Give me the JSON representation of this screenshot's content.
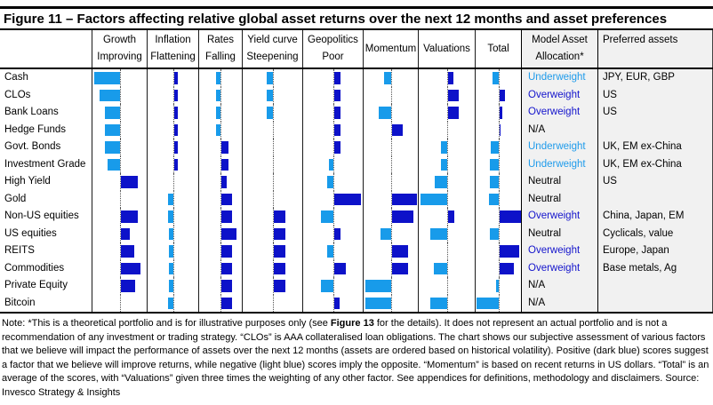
{
  "title": "Figure 11 – Factors affecting relative global asset returns over the next 12 months and asset preferences",
  "chart_data": {
    "type": "bar",
    "orientation": "horizontal-diverging-per-column",
    "scale": {
      "min": -5,
      "max": 5,
      "zero_line": "dotted center line in each factor column"
    },
    "legend": "dark blue = positive score (improves returns), light blue = negative score",
    "factors": [
      {
        "line1": "Growth",
        "line2": "Improving"
      },
      {
        "line1": "Inflation",
        "line2": "Flattening"
      },
      {
        "line1": "Rates",
        "line2": "Falling"
      },
      {
        "line1": "Yield curve",
        "line2": "Steepening"
      },
      {
        "line1": "Geopolitics",
        "line2": "Poor"
      },
      {
        "line1": "Momentum",
        "line2": ""
      },
      {
        "line1": "Valuations",
        "line2": ""
      },
      {
        "line1": "Total",
        "line2": ""
      }
    ],
    "allocation_header": {
      "line1": "Model Asset",
      "line2": "Allocation*"
    },
    "preferred_header": "Preferred assets",
    "rows": [
      {
        "asset": "Cash",
        "scores": [
          -4.7,
          0.8,
          -0.8,
          -1.1,
          1.3,
          -1.3,
          1.1,
          -1.1
        ],
        "allocation": "Underweight",
        "preferred": "JPY, EUR, GBP"
      },
      {
        "asset": "CLOs",
        "scores": [
          -3.8,
          0.8,
          -0.8,
          -1.1,
          1.3,
          0,
          2.1,
          1.1
        ],
        "allocation": "Overweight",
        "preferred": "US"
      },
      {
        "asset": "Bank Loans",
        "scores": [
          -2.8,
          0.8,
          -0.8,
          -1.1,
          1.3,
          -2.2,
          2.1,
          0.6
        ],
        "allocation": "Overweight",
        "preferred": "US"
      },
      {
        "asset": "Hedge Funds",
        "scores": [
          -2.8,
          0.8,
          -0.8,
          0,
          1.3,
          2,
          0,
          0.3
        ],
        "allocation": "N/A",
        "preferred": ""
      },
      {
        "asset": "Govt. Bonds",
        "scores": [
          -2.8,
          0.8,
          1.3,
          0,
          1.3,
          0,
          -1.1,
          -1.4
        ],
        "allocation": "Underweight",
        "preferred": "UK, EM ex-China"
      },
      {
        "asset": "Investment Grade",
        "scores": [
          -2.2,
          0.8,
          1.3,
          0,
          -0.7,
          0,
          -1.1,
          -1.6
        ],
        "allocation": "Underweight",
        "preferred": "UK, EM ex-China"
      },
      {
        "asset": "High Yield",
        "scores": [
          3.2,
          0,
          1,
          0,
          -1.1,
          0,
          -2.3,
          -1.6
        ],
        "allocation": "Neutral",
        "preferred": "US"
      },
      {
        "asset": "Gold",
        "scores": [
          0,
          -1,
          2,
          0,
          5,
          4.7,
          -5,
          -1.7
        ],
        "allocation": "Neutral",
        "preferred": ""
      },
      {
        "asset": "Non-US equities",
        "scores": [
          3.2,
          -1,
          2,
          2.3,
          -2.2,
          4,
          1.3,
          4.7
        ],
        "allocation": "Overweight",
        "preferred": "China, Japan, EM"
      },
      {
        "asset": "US equities",
        "scores": [
          1.8,
          -0.8,
          2.8,
          2.3,
          1.3,
          -2,
          -3.1,
          -1.6
        ],
        "allocation": "Neutral",
        "preferred": "Cyclicals, value"
      },
      {
        "asset": "REITS",
        "scores": [
          2.5,
          -0.8,
          2,
          2.3,
          -1.1,
          3,
          0,
          3.8
        ],
        "allocation": "Overweight",
        "preferred": "Europe, Japan"
      },
      {
        "asset": "Commodities",
        "scores": [
          3.8,
          -0.8,
          2,
          2.3,
          2.2,
          3,
          -2.5,
          2.7
        ],
        "allocation": "Overweight",
        "preferred": "Base metals, Ag"
      },
      {
        "asset": "Private Equity",
        "scores": [
          2.8,
          -0.8,
          2,
          2.3,
          -2.2,
          -4.8,
          0,
          -0.5
        ],
        "allocation": "N/A",
        "preferred": ""
      },
      {
        "asset": "Bitcoin",
        "scores": [
          0,
          -1,
          2,
          0,
          1.1,
          -4.8,
          -3.1,
          -5
        ],
        "allocation": "N/A",
        "preferred": ""
      }
    ]
  },
  "colors": {
    "positive_bar": "#0d12c9",
    "negative_bar": "#189bea",
    "overweight_text": "#1414cc",
    "underweight_text": "#1e9beb",
    "neutral_text": "#000000",
    "panel_bg": "#f1f1f1"
  },
  "note": {
    "before": "Note: *This is a theoretical portfolio and is for illustrative purposes only (see ",
    "bold": "Figure 13",
    "after": " for the details). It does not represent an actual portfolio and is not a recommendation of any investment or trading strategy. “CLOs” is AAA collateralised loan obligations. The chart shows our subjective assessment of various factors that we believe will impact the performance of assets over the next 12 months (assets are ordered based on historical volatility). Positive (dark blue) scores suggest a factor that we believe will improve returns, while negative (light blue) scores imply the opposite. “Momentum” is based on recent returns in US dollars. “Total” is an average of the scores, with “Valuations” given three times the weighting of any other factor. See appendices for definitions, methodology and disclaimers. Source: Invesco Strategy  & Insights"
  }
}
